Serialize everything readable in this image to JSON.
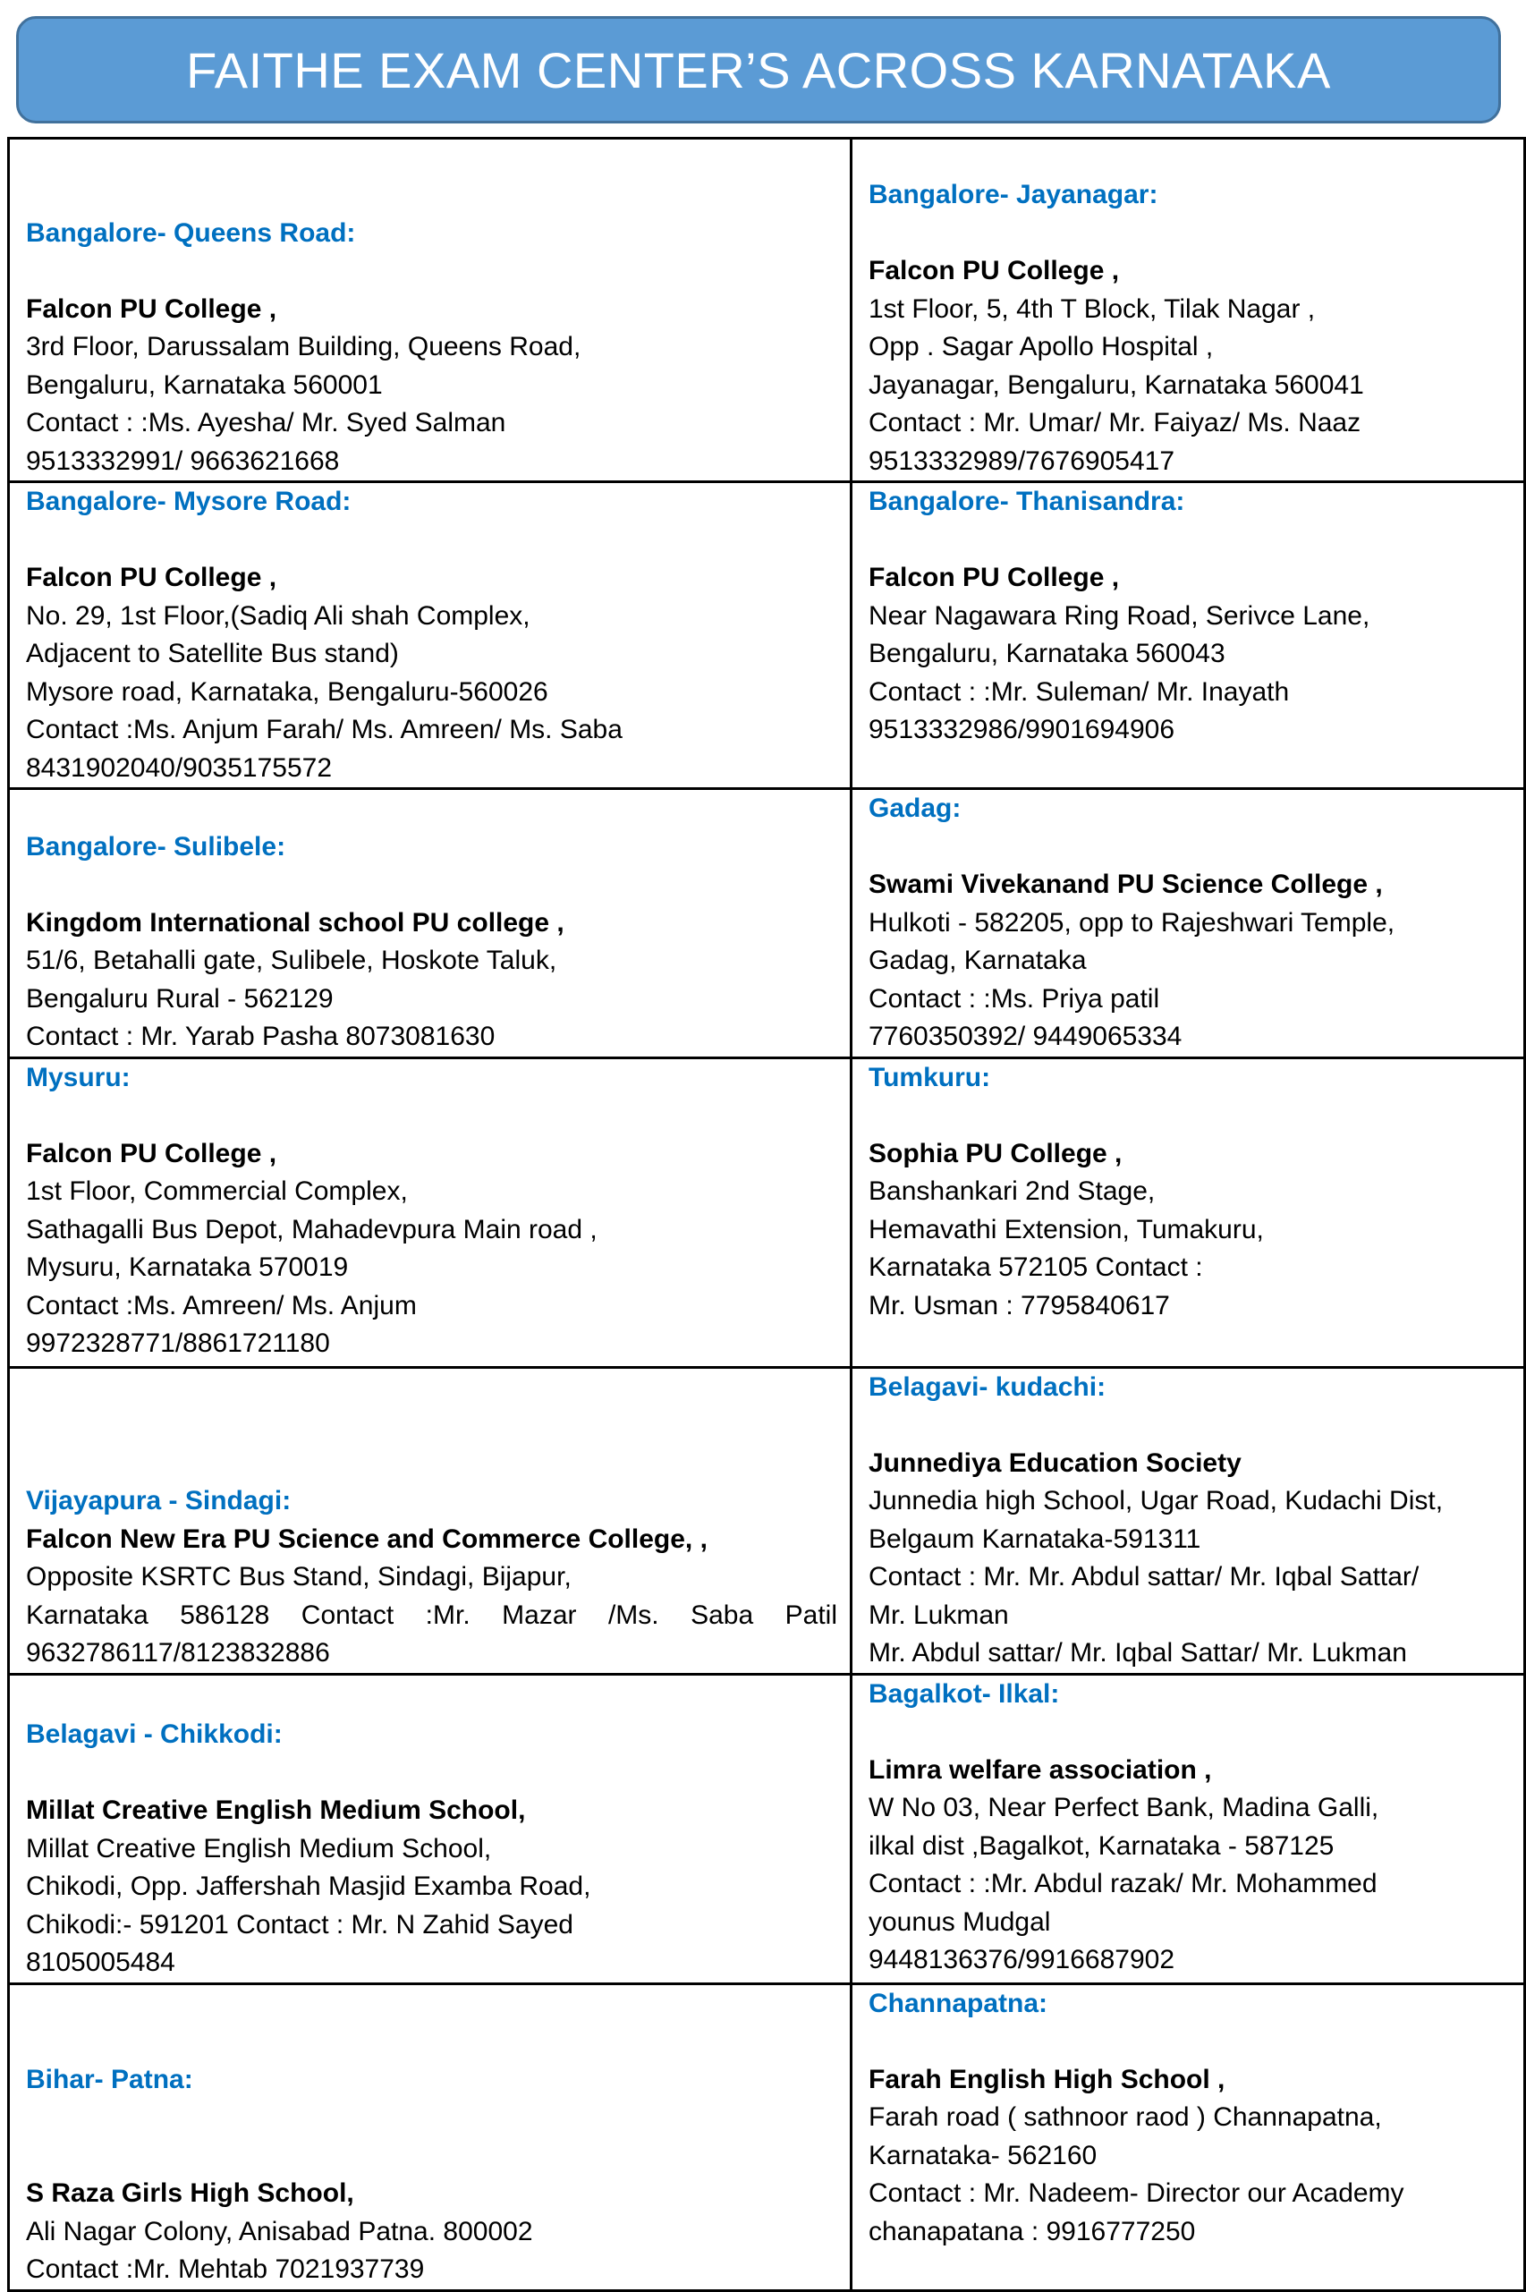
{
  "title": "FAITHE EXAM CENTER’S ACROSS KARNATAKA",
  "colors": {
    "title_bar": "#5b9bd5",
    "heading": "#0070c0"
  },
  "centers": [
    {
      "heading": "Bangalore- Queens Road:",
      "name": "Falcon PU College  ,",
      "lines": [
        "3rd Floor, Darussalam Building, Queens Road,",
        "Bengaluru, Karnataka 560001",
        "Contact :  :Ms. Ayesha/ Mr. Syed Salman",
        "9513332991/   9663621668"
      ]
    },
    {
      "heading": "Bangalore- Jayanagar:",
      "name": "Falcon PU College  ,",
      "lines": [
        "1st Floor, 5, 4th T Block, Tilak Nagar ,",
        " Opp . Sagar Apollo Hospital ,",
        " Jayanagar, Bengaluru, Karnataka 560041",
        "Contact :  Mr. Umar/ Mr. Faiyaz/ Ms. Naaz",
        "9513332989/7676905417"
      ]
    },
    {
      "heading": "Bangalore- Mysore Road:",
      "name": "Falcon PU College  ,",
      "lines": [
        "No. 29, 1st Floor,(Sadiq Ali shah Complex,",
        "Adjacent to Satellite Bus stand)",
        "Mysore road, Karnataka, Bengaluru-560026",
        "Contact :Ms. Anjum Farah/ Ms. Amreen/ Ms. Saba",
        "8431902040/9035175572"
      ]
    },
    {
      "heading": "Bangalore- Thanisandra:",
      "name": "Falcon PU College  ,",
      "lines": [
        "Near Nagawara Ring Road, Serivce Lane,",
        "Bengaluru, Karnataka 560043",
        "Contact :  :Mr. Suleman/ Mr. Inayath",
        "9513332986/9901694906"
      ]
    },
    {
      "heading": "Bangalore- Sulibele:",
      "name": "Kingdom International school PU college  ,",
      "lines": [
        "51/6, Betahalli gate, Sulibele, Hoskote Taluk,",
        "Bengaluru Rural - 562129",
        "Contact :  Mr. Yarab Pasha 8073081630"
      ]
    },
    {
      "heading": "Gadag:",
      "name": "Swami Vivekanand PU Science College  ,",
      "lines": [
        "Hulkoti - 582205, opp to Rajeshwari Temple,",
        "Gadag, Karnataka",
        "Contact :  :Ms. Priya patil",
        " 7760350392/   9449065334"
      ]
    },
    {
      "heading": "Mysuru:",
      "name": "Falcon PU College  ,",
      "lines": [
        "1st Floor, Commercial Complex,",
        "Sathagalli Bus Depot, Mahadevpura Main road ,",
        "Mysuru, Karnataka 570019",
        "Contact :Ms. Amreen/ Ms. Anjum",
        "9972328771/8861721180"
      ]
    },
    {
      "heading": "Tumkuru:",
      "name": "Sophia PU College  ,",
      "lines": [
        "Banshankari 2nd Stage,",
        "Hemavathi Extension, Tumakuru,",
        "Karnataka 572105  Contact :",
        "Mr. Usman : 7795840617"
      ]
    },
    {
      "heading": "Vijayapura - Sindagi:",
      "name": "Falcon New Era PU Science and Commerce College,  ,",
      "lines": [
        "Opposite KSRTC Bus Stand, Sindagi, Bijapur,",
        "Karnataka 586128 Contact :Mr. Mazar /Ms. Saba Patil",
        "9632786117/8123832886"
      ]
    },
    {
      "heading": "Belagavi- kudachi:",
      "name": "Junnediya Education Society",
      "lines": [
        "Junnedia high School, Ugar Road, Kudachi Dist,",
        "Belgaum Karnataka-591311",
        "Contact : Mr. Mr. Abdul sattar/ Mr. Iqbal Sattar/",
        "Mr. Lukman",
        "Mr. Abdul sattar/ Mr. Iqbal Sattar/ Mr. Lukman"
      ]
    },
    {
      "heading": "Belagavi - Chikkodi:",
      "name": "Millat Creative English Medium School,",
      "lines": [
        "Millat Creative English Medium School,",
        "Chikodi, Opp. Jaffershah Masjid Examba Road,",
        "Chikodi:- 591201 Contact :  Mr. N Zahid Sayed",
        "8105005484"
      ]
    },
    {
      "heading": "Bagalkot- Ilkal:",
      "name": "Limra welfare association ,",
      "lines": [
        "W No 03, Near Perfect Bank, Madina Galli,",
        "ilkal dist ,Bagalkot, Karnataka - 587125",
        "Contact :    :Mr. Abdul razak/ Mr. Mohammed",
        "younus Mudgal",
        "9448136376/9916687902"
      ]
    },
    {
      "heading": "Bihar- Patna:",
      "name": "S Raza Girls High School,",
      "lines": [
        " Ali Nagar Colony, Anisabad Patna.  800002",
        "Contact   :Mr. Mehtab 7021937739"
      ]
    },
    {
      "heading": "Channapatna:",
      "name": "Farah English High School ,",
      "lines": [
        "Farah road ( sathnoor raod ) Channapatna,",
        "Karnataka- 562160",
        "Contact :   Mr. Nadeem- Director our Academy",
        "chanapatana : 9916777250"
      ]
    }
  ]
}
